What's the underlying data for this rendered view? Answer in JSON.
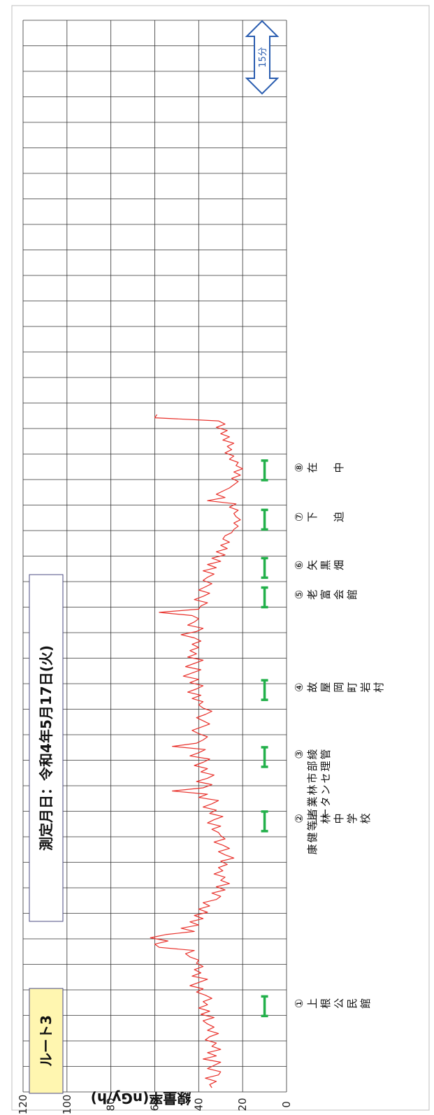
{
  "chart_data": {
    "type": "line",
    "orientation": "rotated-90-clockwise",
    "ylabel": "線量率(nGy/h)",
    "ylim": [
      0,
      120
    ],
    "yticks": [
      0,
      20,
      40,
      60,
      80,
      100,
      120
    ],
    "grid": true,
    "route_label": "ルート3",
    "date_label": "測定月日：令和4年5月17日(火)",
    "scale_label": "15分",
    "series": [
      {
        "color": "#e8302a",
        "values": [
          34,
          35,
          32,
          37,
          31,
          30,
          36,
          33,
          30,
          38,
          32,
          36,
          30,
          34,
          32,
          37,
          35,
          31,
          36,
          33,
          36,
          38,
          33,
          39,
          35,
          40,
          36,
          38,
          34,
          37,
          41,
          38,
          44,
          40,
          36,
          43,
          39,
          42,
          38,
          41,
          40,
          44,
          46,
          42,
          58,
          60,
          54,
          62,
          55,
          42,
          48,
          40,
          44,
          38,
          42,
          36,
          40,
          35,
          38,
          32,
          30,
          34,
          28,
          32,
          26,
          30,
          28,
          33,
          29,
          31,
          27,
          30,
          24,
          28,
          31,
          26,
          29,
          33,
          28,
          30,
          31,
          34,
          30,
          36,
          33,
          29,
          35,
          32,
          38,
          34,
          31,
          40,
          36,
          52,
          38,
          34,
          41,
          36,
          33,
          39,
          36,
          42,
          38,
          35,
          44,
          40,
          37,
          52,
          41,
          38,
          36,
          40,
          43,
          39,
          35,
          38,
          41,
          37,
          34,
          38,
          40,
          38,
          43,
          39,
          45,
          41,
          38,
          44,
          40,
          47,
          43,
          39,
          46,
          42,
          38,
          45,
          41,
          44,
          40,
          43,
          39,
          42,
          48,
          41,
          38,
          45,
          42,
          40,
          43,
          58,
          40,
          39,
          36,
          42,
          38,
          35,
          40,
          37,
          34,
          38,
          36,
          33,
          38,
          32,
          36,
          30,
          34,
          28,
          32,
          27,
          30,
          26,
          29,
          28,
          25,
          24,
          22,
          24,
          21,
          23,
          24,
          22,
          26,
          23,
          36,
          28,
          32,
          29,
          26,
          24,
          22,
          25,
          21,
          24,
          20,
          23,
          22,
          26,
          24,
          28,
          25,
          27,
          24,
          29,
          26,
          30,
          27,
          32,
          28,
          31,
          60,
          59
        ]
      }
    ],
    "stations": [
      {
        "label": "①上根公民館",
        "lines": [
          "①",
          "上",
          "根",
          "公",
          "民",
          "館"
        ],
        "position": 0.06
      },
      {
        "label": "②上林中学校",
        "lines": [
          "②",
          "上",
          "林",
          "中",
          "学",
          "校"
        ],
        "position": 0.405
      },
      {
        "label": "③綾部市林業者等健康管理センター",
        "lines": [
          "③",
          "綾部市林業者等健康",
          "管理センター"
        ],
        "position": 0.525
      },
      {
        "label": "④故屋岡町岩村",
        "lines": [
          "④",
          "故",
          "屋",
          "岡",
          "町",
          "岩",
          "村"
        ],
        "position": 0.65
      },
      {
        "label": "⑤老富会館",
        "lines": [
          "⑤",
          "老",
          "富",
          "会",
          "館"
        ],
        "position": 0.823
      },
      {
        "label": "⑥矢黒畑",
        "lines": [
          "⑥",
          "矢",
          "黒",
          "畑"
        ],
        "position": 0.878
      },
      {
        "label": "⑦下迫",
        "lines": [
          "⑦",
          "下",
          "",
          "迫"
        ],
        "position": 0.968
      },
      {
        "label": "⑧在中",
        "lines": [
          "⑧",
          "在",
          "",
          "中"
        ],
        "position": 1.06
      }
    ]
  }
}
